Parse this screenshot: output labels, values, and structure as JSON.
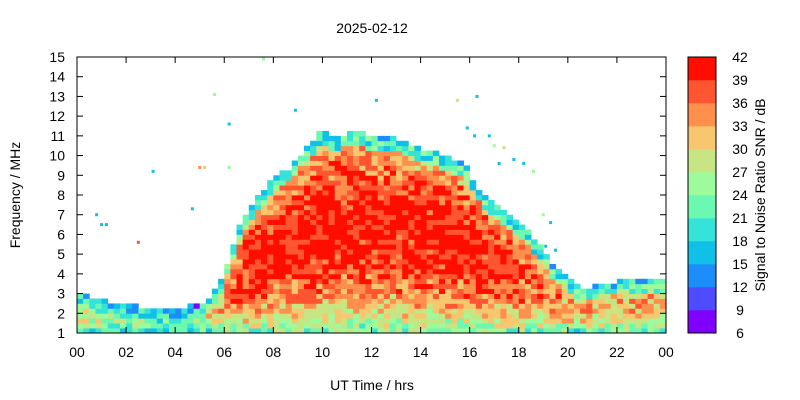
{
  "chart_data": {
    "type": "heatmap",
    "title": "2025-02-12",
    "xlabel": "UT Time / hrs",
    "ylabel": "Frequency / MHz",
    "xlim": [
      0,
      24
    ],
    "ylim": [
      1,
      15
    ],
    "x_ticks": [
      "00",
      "02",
      "04",
      "06",
      "08",
      "10",
      "12",
      "14",
      "16",
      "18",
      "20",
      "22",
      "00"
    ],
    "x_tick_values": [
      0,
      2,
      4,
      6,
      8,
      10,
      12,
      14,
      16,
      18,
      20,
      22,
      24
    ],
    "y_ticks": [
      "1",
      "2",
      "3",
      "4",
      "5",
      "6",
      "7",
      "8",
      "9",
      "10",
      "11",
      "12",
      "13",
      "14",
      "15"
    ],
    "y_tick_values": [
      1,
      2,
      3,
      4,
      5,
      6,
      7,
      8,
      9,
      10,
      11,
      12,
      13,
      14,
      15
    ],
    "colorbar": {
      "label": "Signal to Noise Ratio SNR / dB",
      "range": [
        6,
        42
      ],
      "tick_labels": [
        "42",
        "39",
        "36",
        "33",
        "30",
        "27",
        "24",
        "21",
        "18",
        "15",
        "12",
        "9",
        "6"
      ],
      "tick_values": [
        42,
        39,
        36,
        33,
        30,
        27,
        24,
        21,
        18,
        15,
        12,
        9,
        6
      ],
      "bins": [
        {
          "min": 6,
          "max": 9,
          "color": "#8000ff"
        },
        {
          "min": 9,
          "max": 12,
          "color": "#4f4bff"
        },
        {
          "min": 12,
          "max": 15,
          "color": "#1c8dfa"
        },
        {
          "min": 15,
          "max": 18,
          "color": "#0fc0e8"
        },
        {
          "min": 18,
          "max": 21,
          "color": "#35e3d8"
        },
        {
          "min": 21,
          "max": 24,
          "color": "#6df8b2"
        },
        {
          "min": 24,
          "max": 27,
          "color": "#9dfb9b"
        },
        {
          "min": 27,
          "max": 30,
          "color": "#c7e583"
        },
        {
          "min": 30,
          "max": 33,
          "color": "#f7c66f"
        },
        {
          "min": 33,
          "max": 36,
          "color": "#ff8f4c"
        },
        {
          "min": 36,
          "max": 39,
          "color": "#ff5530"
        },
        {
          "min": 39,
          "max": 42,
          "color": "#ff0e00"
        }
      ]
    },
    "cells": {
      "time_step_hrs": 0.25,
      "freq_step_mhz": 0.25,
      "profile": {
        "upper_edge_mhz": [
          [
            0.0,
            3.0
          ],
          [
            1.0,
            2.6
          ],
          [
            2.0,
            2.3
          ],
          [
            3.0,
            2.2
          ],
          [
            4.0,
            2.2
          ],
          [
            5.0,
            2.3
          ],
          [
            5.8,
            3.2
          ],
          [
            6.2,
            4.8
          ],
          [
            6.6,
            6.2
          ],
          [
            7.2,
            7.6
          ],
          [
            8.0,
            8.7
          ],
          [
            8.6,
            9.2
          ],
          [
            9.2,
            10.1
          ],
          [
            10.0,
            11.2
          ],
          [
            10.6,
            10.8
          ],
          [
            11.2,
            11.2
          ],
          [
            12.0,
            10.9
          ],
          [
            13.0,
            10.8
          ],
          [
            14.0,
            10.3
          ],
          [
            15.0,
            9.9
          ],
          [
            15.8,
            9.4
          ],
          [
            16.4,
            8.2
          ],
          [
            17.2,
            7.4
          ],
          [
            18.0,
            6.6
          ],
          [
            18.8,
            5.4
          ],
          [
            19.4,
            4.4
          ],
          [
            20.0,
            3.8
          ],
          [
            20.6,
            3.2
          ],
          [
            21.4,
            3.3
          ],
          [
            22.2,
            3.6
          ],
          [
            23.0,
            3.7
          ],
          [
            24.0,
            3.7
          ]
        ],
        "peak_snr_db": [
          [
            0.0,
            30
          ],
          [
            1.0,
            28
          ],
          [
            2.0,
            25
          ],
          [
            4.0,
            24
          ],
          [
            5.0,
            26
          ],
          [
            6.0,
            34
          ],
          [
            7.0,
            41
          ],
          [
            9.0,
            41
          ],
          [
            11.0,
            41
          ],
          [
            13.0,
            41
          ],
          [
            15.0,
            41
          ],
          [
            16.0,
            41
          ],
          [
            17.0,
            40
          ],
          [
            18.0,
            38
          ],
          [
            19.0,
            36
          ],
          [
            20.0,
            34
          ],
          [
            21.0,
            33
          ],
          [
            22.0,
            33
          ],
          [
            23.0,
            33
          ],
          [
            24.0,
            33
          ]
        ]
      },
      "isolated_points": [
        {
          "t": 0.8,
          "f": 7.0,
          "snr": 15
        },
        {
          "t": 1.0,
          "f": 6.5,
          "snr": 15
        },
        {
          "t": 1.2,
          "f": 6.5,
          "snr": 15
        },
        {
          "t": 2.5,
          "f": 5.6,
          "snr": 36
        },
        {
          "t": 3.1,
          "f": 9.2,
          "snr": 15
        },
        {
          "t": 4.7,
          "f": 7.3,
          "snr": 15
        },
        {
          "t": 5.0,
          "f": 9.4,
          "snr": 33
        },
        {
          "t": 5.2,
          "f": 9.4,
          "snr": 30
        },
        {
          "t": 5.6,
          "f": 13.1,
          "snr": 24
        },
        {
          "t": 6.2,
          "f": 11.6,
          "snr": 15
        },
        {
          "t": 6.2,
          "f": 9.4,
          "snr": 24
        },
        {
          "t": 7.6,
          "f": 14.9,
          "snr": 24
        },
        {
          "t": 8.9,
          "f": 12.3,
          "snr": 15
        },
        {
          "t": 12.2,
          "f": 12.8,
          "snr": 15
        },
        {
          "t": 15.5,
          "f": 12.8,
          "snr": 27
        },
        {
          "t": 16.3,
          "f": 13.0,
          "snr": 15
        },
        {
          "t": 15.9,
          "f": 11.4,
          "snr": 15
        },
        {
          "t": 16.2,
          "f": 11.0,
          "snr": 15
        },
        {
          "t": 16.8,
          "f": 11.0,
          "snr": 15
        },
        {
          "t": 17.0,
          "f": 10.5,
          "snr": 24
        },
        {
          "t": 17.4,
          "f": 10.4,
          "snr": 27
        },
        {
          "t": 17.8,
          "f": 9.8,
          "snr": 15
        },
        {
          "t": 17.2,
          "f": 9.6,
          "snr": 15
        },
        {
          "t": 18.2,
          "f": 9.6,
          "snr": 15
        },
        {
          "t": 18.6,
          "f": 9.2,
          "snr": 24
        },
        {
          "t": 19.0,
          "f": 7.0,
          "snr": 24
        },
        {
          "t": 19.3,
          "f": 6.6,
          "snr": 15
        },
        {
          "t": 19.1,
          "f": 5.4,
          "snr": 15
        },
        {
          "t": 19.5,
          "f": 5.2,
          "snr": 15
        }
      ]
    }
  }
}
